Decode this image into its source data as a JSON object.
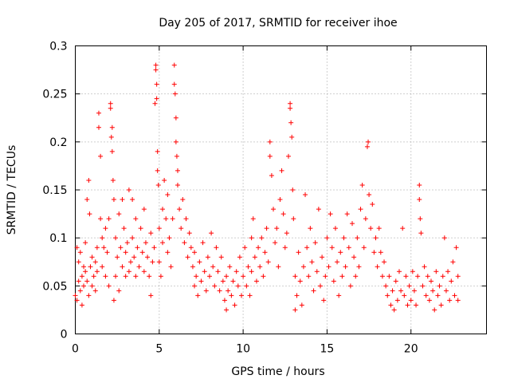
{
  "chart_data": {
    "type": "scatter",
    "title": "Day 205 of 2017, SRMTID for receiver ihoe",
    "xlabel": "GPS time / hours",
    "ylabel": "SRMTID / TECUs",
    "xlim": [
      0,
      24.5
    ],
    "ylim": [
      0,
      0.3
    ],
    "x_ticks": [
      "0",
      "5",
      "10",
      "15",
      "20"
    ],
    "x_tick_values": [
      0,
      5,
      10,
      15,
      20
    ],
    "y_ticks": [
      "0",
      "0.05",
      "0.1",
      "0.15",
      "0.2",
      "0.25",
      "0.3"
    ],
    "y_tick_values": [
      0,
      0.05,
      0.1,
      0.15,
      0.2,
      0.25,
      0.3
    ],
    "grid": true,
    "marker": "plus",
    "color": "#ff0000",
    "series": [
      {
        "name": "SRMTID",
        "points": [
          [
            0.0,
            0.04
          ],
          [
            0.1,
            0.09
          ],
          [
            0.1,
            0.035
          ],
          [
            0.2,
            0.055
          ],
          [
            0.2,
            0.075
          ],
          [
            0.3,
            0.045
          ],
          [
            0.3,
            0.085
          ],
          [
            0.4,
            0.06
          ],
          [
            0.4,
            0.03
          ],
          [
            0.5,
            0.07
          ],
          [
            0.5,
            0.05
          ],
          [
            0.6,
            0.095
          ],
          [
            0.6,
            0.065
          ],
          [
            0.7,
            0.14
          ],
          [
            0.7,
            0.055
          ],
          [
            0.8,
            0.16
          ],
          [
            0.8,
            0.04
          ],
          [
            0.85,
            0.125
          ],
          [
            0.9,
            0.07
          ],
          [
            1.0,
            0.05
          ],
          [
            1.0,
            0.08
          ],
          [
            1.1,
            0.06
          ],
          [
            1.2,
            0.045
          ],
          [
            1.2,
            0.075
          ],
          [
            1.3,
            0.065
          ],
          [
            1.3,
            0.09
          ],
          [
            1.4,
            0.23
          ],
          [
            1.4,
            0.215
          ],
          [
            1.5,
            0.185
          ],
          [
            1.5,
            0.12
          ],
          [
            1.6,
            0.1
          ],
          [
            1.6,
            0.07
          ],
          [
            1.7,
            0.09
          ],
          [
            1.8,
            0.11
          ],
          [
            1.8,
            0.06
          ],
          [
            1.9,
            0.085
          ],
          [
            2.0,
            0.05
          ],
          [
            2.0,
            0.12
          ],
          [
            2.1,
            0.24
          ],
          [
            2.1,
            0.235
          ],
          [
            2.15,
            0.205
          ],
          [
            2.2,
            0.215
          ],
          [
            2.2,
            0.19
          ],
          [
            2.25,
            0.16
          ],
          [
            2.3,
            0.14
          ],
          [
            2.3,
            0.035
          ],
          [
            2.4,
            0.06
          ],
          [
            2.4,
            0.1
          ],
          [
            2.5,
            0.08
          ],
          [
            2.6,
            0.125
          ],
          [
            2.6,
            0.045
          ],
          [
            2.7,
            0.09
          ],
          [
            2.8,
            0.07
          ],
          [
            2.8,
            0.14
          ],
          [
            2.9,
            0.11
          ],
          [
            3.0,
            0.085
          ],
          [
            3.0,
            0.06
          ],
          [
            3.1,
            0.095
          ],
          [
            3.2,
            0.15
          ],
          [
            3.2,
            0.065
          ],
          [
            3.3,
            0.075
          ],
          [
            3.4,
            0.1
          ],
          [
            3.4,
            0.14
          ],
          [
            3.5,
            0.08
          ],
          [
            3.6,
            0.06
          ],
          [
            3.6,
            0.12
          ],
          [
            3.7,
            0.09
          ],
          [
            3.8,
            0.07
          ],
          [
            3.9,
            0.11
          ],
          [
            4.0,
            0.085
          ],
          [
            4.1,
            0.065
          ],
          [
            4.1,
            0.13
          ],
          [
            4.2,
            0.095
          ],
          [
            4.3,
            0.08
          ],
          [
            4.4,
            0.06
          ],
          [
            4.5,
            0.105
          ],
          [
            4.5,
            0.04
          ],
          [
            4.6,
            0.075
          ],
          [
            4.7,
            0.09
          ],
          [
            4.75,
            0.24
          ],
          [
            4.8,
            0.28
          ],
          [
            4.8,
            0.275
          ],
          [
            4.85,
            0.26
          ],
          [
            4.85,
            0.245
          ],
          [
            4.9,
            0.19
          ],
          [
            4.9,
            0.17
          ],
          [
            4.95,
            0.155
          ],
          [
            5.0,
            0.11
          ],
          [
            5.0,
            0.075
          ],
          [
            5.1,
            0.06
          ],
          [
            5.2,
            0.13
          ],
          [
            5.2,
            0.095
          ],
          [
            5.3,
            0.16
          ],
          [
            5.4,
            0.12
          ],
          [
            5.5,
            0.085
          ],
          [
            5.5,
            0.145
          ],
          [
            5.6,
            0.1
          ],
          [
            5.7,
            0.07
          ],
          [
            5.8,
            0.12
          ],
          [
            5.9,
            0.28
          ],
          [
            5.9,
            0.26
          ],
          [
            5.95,
            0.25
          ],
          [
            6.0,
            0.225
          ],
          [
            6.0,
            0.2
          ],
          [
            6.05,
            0.185
          ],
          [
            6.1,
            0.17
          ],
          [
            6.1,
            0.155
          ],
          [
            6.2,
            0.13
          ],
          [
            6.3,
            0.11
          ],
          [
            6.4,
            0.14
          ],
          [
            6.5,
            0.095
          ],
          [
            6.6,
            0.12
          ],
          [
            6.7,
            0.08
          ],
          [
            6.8,
            0.105
          ],
          [
            6.9,
            0.09
          ],
          [
            7.0,
            0.07
          ],
          [
            7.1,
            0.05
          ],
          [
            7.1,
            0.085
          ],
          [
            7.2,
            0.06
          ],
          [
            7.3,
            0.04
          ],
          [
            7.4,
            0.075
          ],
          [
            7.5,
            0.055
          ],
          [
            7.6,
            0.095
          ],
          [
            7.7,
            0.065
          ],
          [
            7.8,
            0.045
          ],
          [
            7.9,
            0.08
          ],
          [
            8.0,
            0.06
          ],
          [
            8.1,
            0.105
          ],
          [
            8.2,
            0.07
          ],
          [
            8.3,
            0.05
          ],
          [
            8.4,
            0.09
          ],
          [
            8.5,
            0.065
          ],
          [
            8.6,
            0.045
          ],
          [
            8.7,
            0.08
          ],
          [
            8.8,
            0.055
          ],
          [
            8.9,
            0.035
          ],
          [
            9.0,
            0.025
          ],
          [
            9.0,
            0.06
          ],
          [
            9.1,
            0.045
          ],
          [
            9.2,
            0.07
          ],
          [
            9.3,
            0.04
          ],
          [
            9.4,
            0.055
          ],
          [
            9.5,
            0.03
          ],
          [
            9.6,
            0.065
          ],
          [
            9.7,
            0.05
          ],
          [
            9.8,
            0.08
          ],
          [
            9.9,
            0.04
          ],
          [
            10.0,
            0.06
          ],
          [
            10.1,
            0.09
          ],
          [
            10.2,
            0.05
          ],
          [
            10.3,
            0.07
          ],
          [
            10.4,
            0.04
          ],
          [
            10.5,
            0.1
          ],
          [
            10.5,
            0.065
          ],
          [
            10.6,
            0.12
          ],
          [
            10.7,
            0.08
          ],
          [
            10.8,
            0.055
          ],
          [
            10.9,
            0.09
          ],
          [
            11.0,
            0.07
          ],
          [
            11.1,
            0.1
          ],
          [
            11.2,
            0.06
          ],
          [
            11.3,
            0.085
          ],
          [
            11.4,
            0.11
          ],
          [
            11.5,
            0.075
          ],
          [
            11.6,
            0.2
          ],
          [
            11.6,
            0.185
          ],
          [
            11.7,
            0.165
          ],
          [
            11.8,
            0.13
          ],
          [
            11.9,
            0.095
          ],
          [
            12.0,
            0.11
          ],
          [
            12.1,
            0.07
          ],
          [
            12.2,
            0.14
          ],
          [
            12.3,
            0.17
          ],
          [
            12.4,
            0.125
          ],
          [
            12.5,
            0.09
          ],
          [
            12.6,
            0.105
          ],
          [
            12.7,
            0.185
          ],
          [
            12.8,
            0.24
          ],
          [
            12.8,
            0.235
          ],
          [
            12.85,
            0.22
          ],
          [
            12.9,
            0.205
          ],
          [
            12.95,
            0.15
          ],
          [
            13.0,
            0.12
          ],
          [
            13.1,
            0.025
          ],
          [
            13.1,
            0.06
          ],
          [
            13.2,
            0.04
          ],
          [
            13.3,
            0.085
          ],
          [
            13.4,
            0.055
          ],
          [
            13.5,
            0.03
          ],
          [
            13.6,
            0.07
          ],
          [
            13.7,
            0.145
          ],
          [
            13.8,
            0.09
          ],
          [
            13.9,
            0.06
          ],
          [
            14.0,
            0.11
          ],
          [
            14.1,
            0.075
          ],
          [
            14.2,
            0.045
          ],
          [
            14.3,
            0.095
          ],
          [
            14.4,
            0.065
          ],
          [
            14.5,
            0.13
          ],
          [
            14.6,
            0.05
          ],
          [
            14.7,
            0.08
          ],
          [
            14.8,
            0.035
          ],
          [
            14.9,
            0.06
          ],
          [
            15.0,
            0.1
          ],
          [
            15.1,
            0.07
          ],
          [
            15.2,
            0.125
          ],
          [
            15.3,
            0.09
          ],
          [
            15.4,
            0.055
          ],
          [
            15.5,
            0.11
          ],
          [
            15.6,
            0.075
          ],
          [
            15.7,
            0.04
          ],
          [
            15.8,
            0.085
          ],
          [
            15.9,
            0.06
          ],
          [
            16.0,
            0.1
          ],
          [
            16.1,
            0.07
          ],
          [
            16.2,
            0.125
          ],
          [
            16.3,
            0.09
          ],
          [
            16.4,
            0.05
          ],
          [
            16.5,
            0.115
          ],
          [
            16.6,
            0.08
          ],
          [
            16.7,
            0.06
          ],
          [
            16.8,
            0.1
          ],
          [
            16.9,
            0.07
          ],
          [
            17.0,
            0.13
          ],
          [
            17.1,
            0.155
          ],
          [
            17.2,
            0.09
          ],
          [
            17.3,
            0.12
          ],
          [
            17.4,
            0.195
          ],
          [
            17.45,
            0.2
          ],
          [
            17.5,
            0.145
          ],
          [
            17.6,
            0.11
          ],
          [
            17.7,
            0.135
          ],
          [
            17.8,
            0.085
          ],
          [
            17.9,
            0.1
          ],
          [
            18.0,
            0.07
          ],
          [
            18.1,
            0.11
          ],
          [
            18.2,
            0.085
          ],
          [
            18.3,
            0.06
          ],
          [
            18.4,
            0.075
          ],
          [
            18.5,
            0.05
          ],
          [
            18.6,
            0.04
          ],
          [
            18.7,
            0.06
          ],
          [
            18.8,
            0.03
          ],
          [
            18.9,
            0.045
          ],
          [
            19.0,
            0.025
          ],
          [
            19.1,
            0.055
          ],
          [
            19.2,
            0.035
          ],
          [
            19.3,
            0.065
          ],
          [
            19.4,
            0.045
          ],
          [
            19.5,
            0.11
          ],
          [
            19.6,
            0.04
          ],
          [
            19.7,
            0.06
          ],
          [
            19.8,
            0.03
          ],
          [
            19.9,
            0.05
          ],
          [
            20.0,
            0.035
          ],
          [
            20.1,
            0.065
          ],
          [
            20.2,
            0.045
          ],
          [
            20.3,
            0.03
          ],
          [
            20.4,
            0.06
          ],
          [
            20.5,
            0.155
          ],
          [
            20.5,
            0.14
          ],
          [
            20.55,
            0.12
          ],
          [
            20.6,
            0.105
          ],
          [
            20.7,
            0.05
          ],
          [
            20.8,
            0.07
          ],
          [
            20.9,
            0.04
          ],
          [
            21.0,
            0.06
          ],
          [
            21.1,
            0.035
          ],
          [
            21.2,
            0.055
          ],
          [
            21.3,
            0.045
          ],
          [
            21.4,
            0.025
          ],
          [
            21.5,
            0.065
          ],
          [
            21.6,
            0.04
          ],
          [
            21.7,
            0.05
          ],
          [
            21.8,
            0.03
          ],
          [
            21.9,
            0.06
          ],
          [
            22.0,
            0.1
          ],
          [
            22.1,
            0.045
          ],
          [
            22.2,
            0.065
          ],
          [
            22.3,
            0.035
          ],
          [
            22.4,
            0.055
          ],
          [
            22.5,
            0.075
          ],
          [
            22.6,
            0.04
          ],
          [
            22.7,
            0.09
          ],
          [
            22.8,
            0.06
          ],
          [
            22.8,
            0.035
          ]
        ]
      }
    ]
  }
}
